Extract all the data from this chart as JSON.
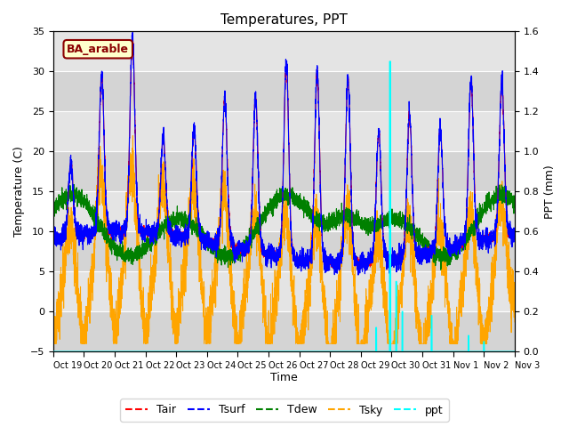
{
  "title": "Temperatures, PPT",
  "xlabel": "Time",
  "ylabel_left": "Temperature (C)",
  "ylabel_right": "PPT (mm)",
  "ylim_left": [
    -5,
    35
  ],
  "ylim_right": [
    0.0,
    1.6
  ],
  "annotation_text": "BA_arable",
  "plot_bg_color": "#d8d8d8",
  "band_colors": [
    "#e8e8e8",
    "#d0d0d0"
  ],
  "grid_color": "white",
  "legend_labels": [
    "Tair",
    "Tsurf",
    "Tdew",
    "Tsky",
    "ppt"
  ],
  "legend_colors": [
    "red",
    "blue",
    "green",
    "orange",
    "cyan"
  ],
  "xtick_labels": [
    "Oct 19",
    "Oct 20",
    "Oct 21",
    "Oct 22",
    "Oct 23",
    "Oct 24",
    "Oct 25",
    "Oct 26",
    "Oct 27",
    "Oct 28",
    "Oct 29",
    "Oct 30",
    "Oct 31",
    "Nov 1",
    "Nov 2",
    "Nov 3"
  ],
  "ytick_labels_left": [
    "-5",
    "0",
    "5",
    "10",
    "15",
    "20",
    "25",
    "30",
    "35"
  ],
  "ytick_vals_left": [
    -5,
    0,
    5,
    10,
    15,
    20,
    25,
    30,
    35
  ],
  "ytick_vals_right": [
    0.0,
    0.2,
    0.4,
    0.6,
    0.8,
    1.0,
    1.2,
    1.4,
    1.6
  ],
  "n_points": 4320,
  "days": 15,
  "figsize": [
    6.4,
    4.8
  ],
  "dpi": 100
}
